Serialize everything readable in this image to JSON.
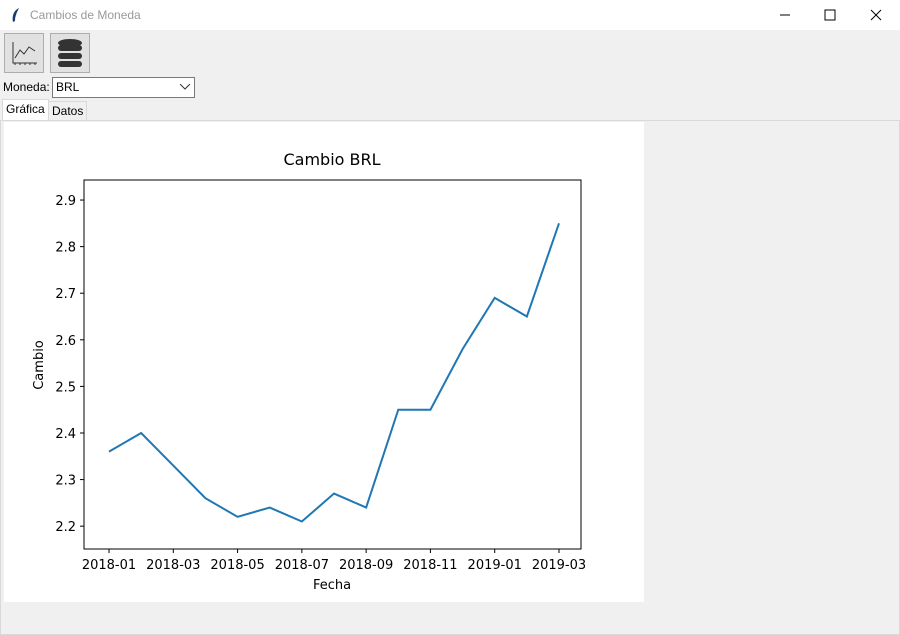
{
  "window": {
    "title": "Cambios de Moneda"
  },
  "form": {
    "label": "Moneda:",
    "value": "BRL"
  },
  "tabs": [
    "Gráfica",
    "Datos"
  ],
  "chart_data": {
    "type": "line",
    "title": "Cambio BRL",
    "x_label": "Fecha",
    "y_label": "Cambio",
    "x": [
      "2018-01",
      "2018-02",
      "2018-03",
      "2018-04",
      "2018-05",
      "2018-06",
      "2018-07",
      "2018-08",
      "2018-09",
      "2018-10",
      "2018-11",
      "2018-12",
      "2019-01",
      "2019-02",
      "2019-03"
    ],
    "values": [
      2.36,
      2.4,
      2.33,
      2.26,
      2.22,
      2.24,
      2.21,
      2.27,
      2.24,
      2.45,
      2.45,
      2.58,
      2.69,
      2.65,
      2.85
    ],
    "color": "#1f77b4",
    "xticks": [
      "2018-01",
      "2018-03",
      "2018-05",
      "2018-07",
      "2018-09",
      "2018-11",
      "2019-01",
      "2019-03"
    ],
    "ylim": [
      2.151,
      2.943
    ],
    "yticks": [
      2.2,
      2.3,
      2.4,
      2.5,
      2.6,
      2.7,
      2.8,
      2.9
    ]
  }
}
